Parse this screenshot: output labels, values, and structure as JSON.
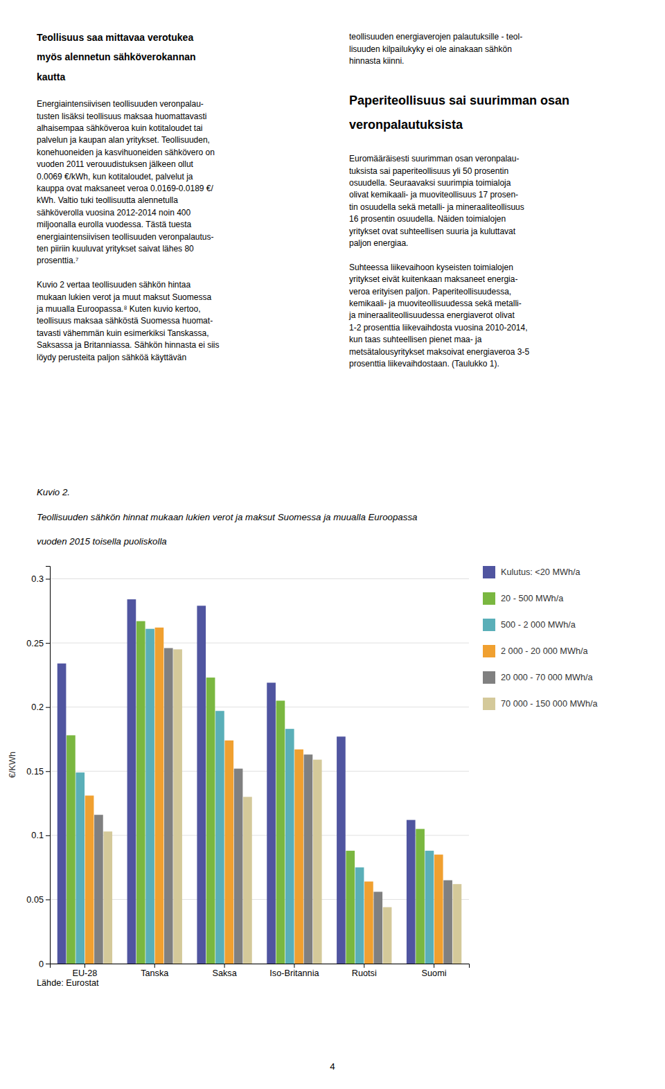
{
  "article": {
    "left_title": [
      "Teollisuus saa mittavaa verotukea",
      "myös alennetun sähköverokannan",
      "kautta"
    ],
    "left_body": [
      [
        "Energiaintensiivisen teollisuuden veronpalau-",
        "tusten lisäksi teollisuus maksaa huomattavasti",
        "alhaisempaa sähköveroa kuin kotitaloudet tai",
        "palvelun ja kaupan alan yritykset. Teollisuuden,",
        "konehuoneiden ja kasvihuoneiden sähkövero on",
        "vuoden 2011 verouudistuksen jälkeen ollut",
        "0.0069 €/kWh, kun kotitaloudet, palvelut ja",
        "kauppa ovat maksaneet veroa 0.0169-0.0189 €/",
        "kWh. Valtio tuki teollisuutta alennetulla",
        "sähköverolla vuosina 2012-2014 noin 400",
        "miljoonalla eurolla vuodessa. Tästä tuesta",
        "energiaintensiivisen teollisuuden veronpalautus-",
        "ten piiriin kuuluvat yritykset saivat lähes 80",
        "prosenttia.⁷"
      ],
      [
        "Kuvio 2 vertaa teollisuuden sähkön hintaa",
        "mukaan lukien verot ja muut maksut Suomessa",
        "ja muualla Euroopassa.⁸ Kuten kuvio kertoo,",
        "teollisuus maksaa sähköstä Suomessa huomat-",
        "tavasti vähemmän kuin esimerkiksi Tanskassa,",
        "Saksassa ja Britanniassa. Sähkön hinnasta ei siis",
        "löydy perusteita paljon sähköä käyttävän"
      ]
    ],
    "right_top": [
      "teollisuuden energiaverojen palautuksille - teol-",
      "lisuuden kilpailukyky ei ole ainakaan sähkön",
      "hinnasta kiinni."
    ],
    "right_title": [
      "Paperiteollisuus sai suurimman osan",
      "veronpalautuksista"
    ],
    "right_body": [
      [
        "Euromääräisesti suurimman osan veronpalau-",
        "tuksista sai paperiteollisuus yli 50 prosentin",
        "osuudella. Seuraavaksi suurimpia toimialoja",
        "olivat kemikaali- ja muoviteollisuus 17 prosen-",
        "tin osuudella sekä metalli- ja mineraaliteollisuus",
        "16 prosentin osuudella. Näiden toimialojen",
        "yritykset ovat suhteellisen suuria ja kuluttavat",
        "paljon energiaa."
      ],
      [
        "Suhteessa liikevaihoon kyseisten toimialojen",
        "yritykset eivät kuitenkaan maksaneet energia-",
        "veroa erityisen paljon. Paperiteollisuudessa,",
        "kemikaali- ja muoviteollisuudessa sekä metalli-",
        "ja mineraaliteollisuudessa energiaverot olivat",
        "1-2 prosenttia liikevaihdosta vuosina 2010-2014,",
        "kun taas suhteellisen pienet maa- ja",
        "metsätalousyritykset maksoivat energiaveroa 3-5",
        "prosenttia liikevaihdostaan. (Taulukko 1)."
      ]
    ]
  },
  "chart_data": {
    "type": "bar",
    "title": "Kuvio 2.",
    "subtitle": [
      "Teollisuuden sähkön hinnat mukaan lukien verot ja maksut Suomessa ja muualla Euroopassa",
      "vuoden 2015 toisella puoliskolla"
    ],
    "ylabel": "€/KWh",
    "source": "Lähde: Eurostat",
    "categories": [
      "EU-28",
      "Tanska",
      "Saksa",
      "Iso-Britannia",
      "Ruotsi",
      "Suomi"
    ],
    "series": [
      {
        "name": "Kulutus: <20 MWh/a",
        "color": "#5055a0",
        "values": [
          0.234,
          0.284,
          0.279,
          0.219,
          0.177,
          0.112
        ]
      },
      {
        "name": "20 - 500 MWh/a",
        "color": "#7ab740",
        "values": [
          0.178,
          0.267,
          0.223,
          0.205,
          0.088,
          0.105
        ]
      },
      {
        "name": "500 - 2 000 MWh/a",
        "color": "#5aafb8",
        "values": [
          0.149,
          0.261,
          0.197,
          0.183,
          0.075,
          0.088
        ]
      },
      {
        "name": "2 000 - 20 000 MWh/a",
        "color": "#f0a030",
        "values": [
          0.131,
          0.262,
          0.174,
          0.167,
          0.064,
          0.085
        ]
      },
      {
        "name": "20 000 - 70 000 MWh/a",
        "color": "#808080",
        "values": [
          0.116,
          0.246,
          0.152,
          0.163,
          0.056,
          0.065
        ]
      },
      {
        "name": "70 000 - 150 000 MWh/a",
        "color": "#d4c99a",
        "values": [
          0.103,
          0.245,
          0.13,
          0.159,
          0.044,
          0.062
        ]
      }
    ],
    "ylim": [
      0,
      0.31
    ],
    "yticks": [
      0,
      0.05,
      0.1,
      0.15,
      0.2,
      0.25,
      0.3
    ],
    "grid": true,
    "legend": "right"
  },
  "page_number": "4"
}
